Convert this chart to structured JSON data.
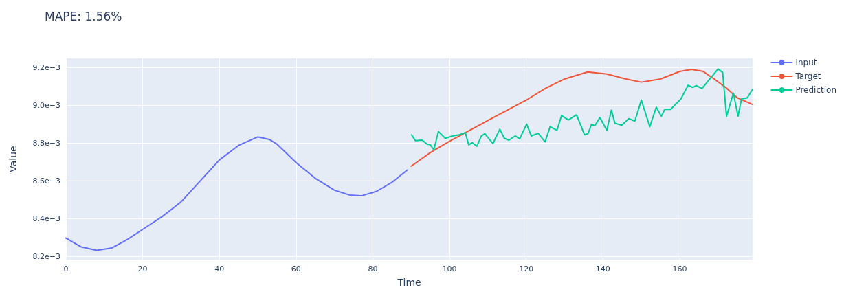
{
  "chart_data": {
    "type": "line",
    "title": "MAPE: 1.56%",
    "xlabel": "Time",
    "ylabel": "Value",
    "xlim": [
      0,
      179
    ],
    "xticks": [
      0,
      20,
      40,
      60,
      80,
      100,
      120,
      140,
      160
    ],
    "ylim": [
      0.008183,
      0.009249
    ],
    "yticks": [
      {
        "value": 0.0082,
        "label": "8.2e−3"
      },
      {
        "value": 0.0084,
        "label": "8.4e−3"
      },
      {
        "value": 0.0086,
        "label": "8.6e−3"
      },
      {
        "value": 0.0088,
        "label": "8.8e−3"
      },
      {
        "value": 0.009,
        "label": "9.0e−3"
      },
      {
        "value": 0.0092,
        "label": "9.2e−3"
      }
    ],
    "grid": true,
    "legend": "top right",
    "marker": "none",
    "line_style": "solid",
    "series": [
      {
        "name": "Input",
        "color": "#636efa",
        "x": [
          0,
          4,
          8,
          12,
          16,
          20,
          25,
          30,
          35,
          40,
          45,
          50,
          53,
          55,
          60,
          65,
          70,
          74,
          77,
          81,
          85,
          89
        ],
        "values": [
          0.008297,
          0.00825,
          0.008232,
          0.008245,
          0.00829,
          0.008343,
          0.00841,
          0.008489,
          0.0086,
          0.008711,
          0.008788,
          0.008833,
          0.00882,
          0.008795,
          0.008697,
          0.008614,
          0.008551,
          0.008525,
          0.008521,
          0.008545,
          0.008593,
          0.008658
        ]
      },
      {
        "name": "Target",
        "color": "#ef553b",
        "x": [
          90,
          95,
          100,
          110,
          120,
          125,
          130,
          136,
          141,
          146,
          150,
          155,
          160,
          163,
          166,
          169,
          172,
          175,
          179
        ],
        "values": [
          0.008678,
          0.00875,
          0.00881,
          0.00892,
          0.009028,
          0.00909,
          0.00914,
          0.009177,
          0.009166,
          0.00914,
          0.009123,
          0.00914,
          0.00918,
          0.009191,
          0.009181,
          0.00914,
          0.009095,
          0.00904,
          0.009005
        ]
      },
      {
        "name": "Prediction",
        "color": "#00cc96",
        "x": [
          90.1,
          91.1,
          92.9,
          94.1,
          95.0,
          95.9,
          97.1,
          98.9,
          100.7,
          102.5,
          104.1,
          105.0,
          105.9,
          107.1,
          108.3,
          109.2,
          111.3,
          113.1,
          114.3,
          115.5,
          117.1,
          118.3,
          120.1,
          121.3,
          123.1,
          124.9,
          126.2,
          128.0,
          129.2,
          131.0,
          133.1,
          135.2,
          136.1,
          137.0,
          137.9,
          139.2,
          141.0,
          142.2,
          143.1,
          144.9,
          146.7,
          148.3,
          150.0,
          152.2,
          153.9,
          155.2,
          156.1,
          157.6,
          160.3,
          162.2,
          163.4,
          164.3,
          165.8,
          170.0,
          171.2,
          172.2,
          174.0,
          175.2,
          176.1,
          177.6,
          179
        ],
        "values": [
          0.008844,
          0.008813,
          0.008816,
          0.008795,
          0.008791,
          0.008764,
          0.008862,
          0.008825,
          0.008838,
          0.008844,
          0.008856,
          0.008791,
          0.008803,
          0.008783,
          0.008838,
          0.00885,
          0.008798,
          0.008874,
          0.008825,
          0.008816,
          0.008838,
          0.008823,
          0.008901,
          0.008838,
          0.008852,
          0.008807,
          0.008887,
          0.008868,
          0.008946,
          0.008923,
          0.00895,
          0.008844,
          0.00885,
          0.008899,
          0.008893,
          0.008936,
          0.008868,
          0.008975,
          0.008905,
          0.008895,
          0.00893,
          0.008917,
          0.009028,
          0.008887,
          0.008991,
          0.008942,
          0.008979,
          0.008979,
          0.009034,
          0.009107,
          0.009095,
          0.009105,
          0.009089,
          0.009193,
          0.009175,
          0.008942,
          0.009065,
          0.008942,
          0.009034,
          0.00904,
          0.009085
        ]
      }
    ]
  }
}
